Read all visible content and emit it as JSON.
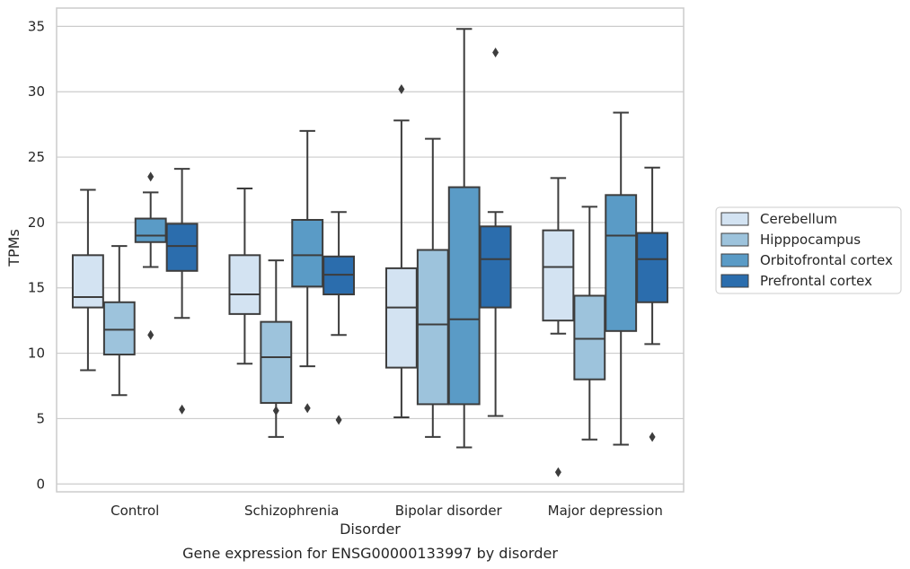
{
  "chart_data": {
    "type": "box",
    "xlabel": "Disorder",
    "ylabel": "TPMs",
    "caption": "Gene expression for ENSG00000133997 by disorder",
    "ylim": [
      -0.6,
      36.4
    ],
    "yticks": [
      0,
      5,
      10,
      15,
      20,
      25,
      30,
      35
    ],
    "grid": true,
    "legend_position": "right",
    "categories": [
      "Control",
      "Schizophrenia",
      "Bipolar disorder",
      "Major depression"
    ],
    "series": [
      {
        "name": "Cerebellum",
        "color": "#d3e3f2",
        "boxes": [
          {
            "whislo": 8.7,
            "q1": 13.5,
            "med": 14.3,
            "q3": 17.5,
            "whishi": 22.5,
            "fliers": []
          },
          {
            "whislo": 9.2,
            "q1": 13.0,
            "med": 14.5,
            "q3": 17.5,
            "whishi": 22.6,
            "fliers": []
          },
          {
            "whislo": 5.1,
            "q1": 8.9,
            "med": 13.5,
            "q3": 16.5,
            "whishi": 27.8,
            "fliers": [
              30.2
            ]
          },
          {
            "whislo": 11.5,
            "q1": 12.5,
            "med": 16.6,
            "q3": 19.4,
            "whishi": 23.4,
            "fliers": [
              0.9
            ]
          }
        ]
      },
      {
        "name": "Hipppocampus",
        "color": "#9dc3dc",
        "boxes": [
          {
            "whislo": 6.8,
            "q1": 9.9,
            "med": 11.8,
            "q3": 13.9,
            "whishi": 18.2,
            "fliers": []
          },
          {
            "whislo": 3.6,
            "q1": 6.2,
            "med": 9.7,
            "q3": 12.4,
            "whishi": 17.1,
            "fliers": [
              5.6
            ]
          },
          {
            "whislo": 3.6,
            "q1": 6.1,
            "med": 12.2,
            "q3": 17.9,
            "whishi": 26.4,
            "fliers": []
          },
          {
            "whislo": 3.4,
            "q1": 8.0,
            "med": 11.1,
            "q3": 14.4,
            "whishi": 21.2,
            "fliers": []
          }
        ]
      },
      {
        "name": "Orbitofrontal cortex",
        "color": "#5a9bc6",
        "boxes": [
          {
            "whislo": 16.6,
            "q1": 18.5,
            "med": 19.0,
            "q3": 20.3,
            "whishi": 22.3,
            "fliers": [
              23.5,
              11.4
            ]
          },
          {
            "whislo": 9.0,
            "q1": 15.1,
            "med": 17.5,
            "q3": 20.2,
            "whishi": 27.0,
            "fliers": [
              5.8
            ]
          },
          {
            "whislo": 2.8,
            "q1": 6.1,
            "med": 12.6,
            "q3": 22.7,
            "whishi": 34.8,
            "fliers": []
          },
          {
            "whislo": 3.0,
            "q1": 11.7,
            "med": 19.0,
            "q3": 22.1,
            "whishi": 28.4,
            "fliers": []
          }
        ]
      },
      {
        "name": "Prefrontal cortex",
        "color": "#2b6dad",
        "boxes": [
          {
            "whislo": 12.7,
            "q1": 16.3,
            "med": 18.2,
            "q3": 19.9,
            "whishi": 24.1,
            "fliers": [
              5.7
            ]
          },
          {
            "whislo": 11.4,
            "q1": 14.5,
            "med": 16.0,
            "q3": 17.4,
            "whishi": 20.8,
            "fliers": [
              4.9
            ]
          },
          {
            "whislo": 5.2,
            "q1": 13.5,
            "med": 17.2,
            "q3": 19.7,
            "whishi": 20.8,
            "fliers": [
              33.0
            ]
          },
          {
            "whislo": 10.7,
            "q1": 13.9,
            "med": 17.2,
            "q3": 19.2,
            "whishi": 24.2,
            "fliers": [
              3.6
            ]
          }
        ]
      }
    ]
  }
}
